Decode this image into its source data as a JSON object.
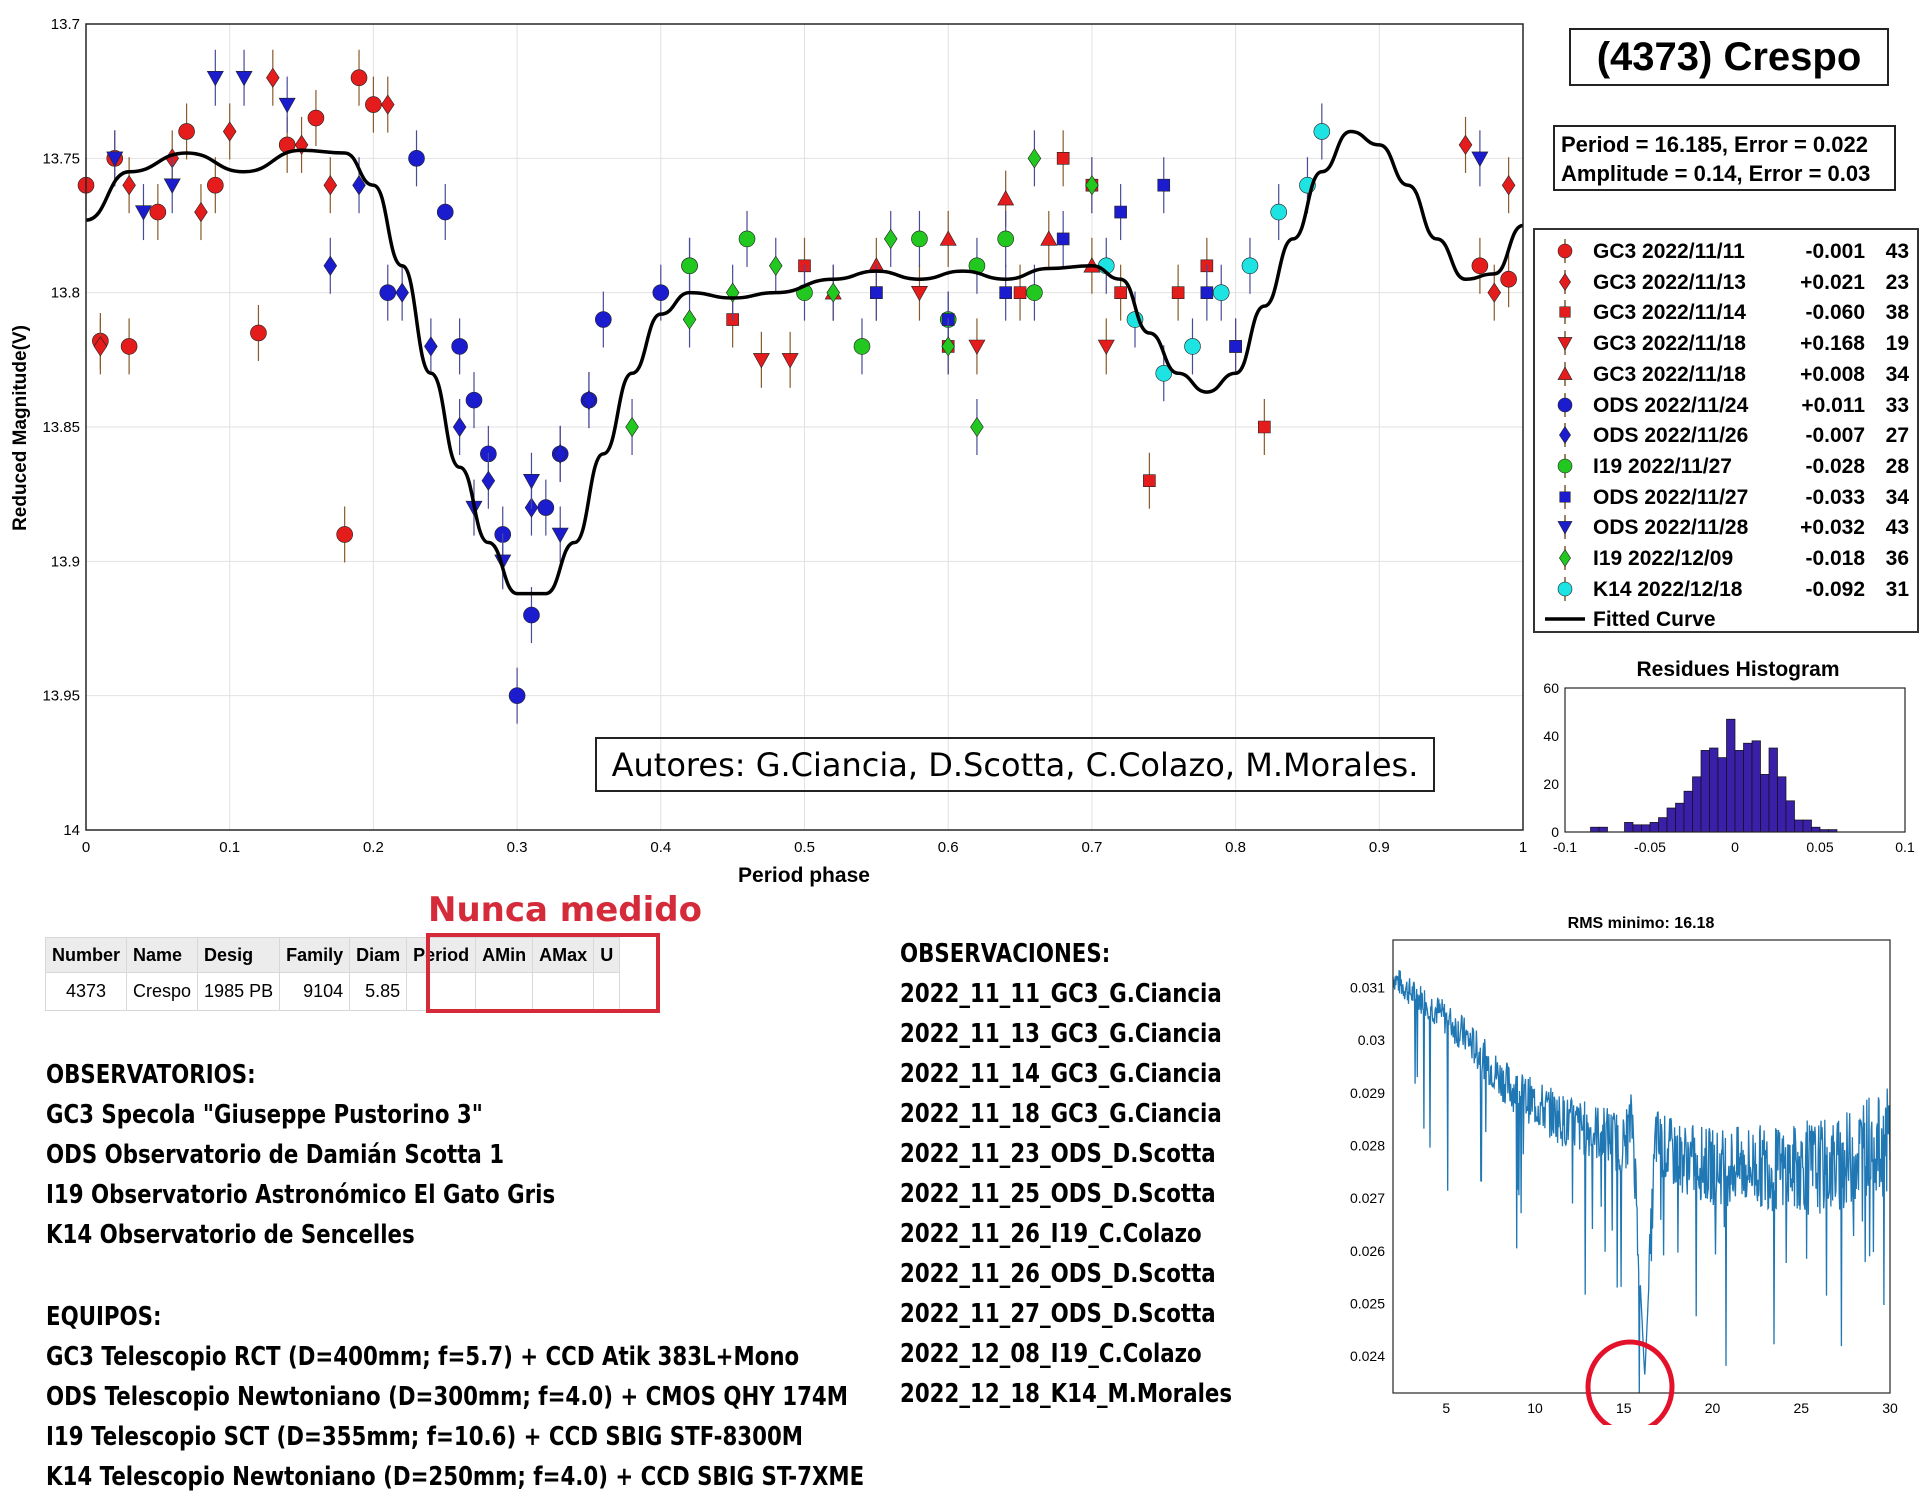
{
  "header": {
    "title": "(4373) Crespo",
    "period_line": "Period =  16.185, Error = 0.022",
    "amplitude_line": "Amplitude = 0.14, Error = 0.03",
    "authors": "Autores: G.Ciancia, D.Scotta, C.Colazo, M.Morales."
  },
  "chart_data": [
    {
      "type": "scatter",
      "xlabel": "Period phase",
      "ylabel": "Reduced Magnitude(V)",
      "xlim": [
        0,
        1
      ],
      "ylim": [
        14,
        13.7
      ],
      "y_reversed": true,
      "xticks": [
        0,
        0.1,
        0.2,
        0.3,
        0.4,
        0.5,
        0.6,
        0.7,
        0.8,
        0.9,
        1
      ],
      "xtick_labels": [
        "0",
        "0.1",
        "0.2",
        "0.3",
        "0.4",
        "0.5",
        "0.6",
        "0.7",
        "0.8",
        "0.9",
        "1"
      ],
      "yticks": [
        13.7,
        13.75,
        13.8,
        13.85,
        13.9,
        13.95,
        14
      ],
      "ytick_labels": [
        "13.7",
        "13.75",
        "13.8",
        "13.85",
        "13.9",
        "13.95",
        "14"
      ],
      "grid": true,
      "legend_position": "right",
      "series": [
        {
          "name": "GC3 2022/11/11",
          "offset": "-0.001",
          "count": "43",
          "color": "#e41c1c",
          "marker": "circle",
          "x": [
            0.0,
            0.01,
            0.02,
            0.03,
            0.05,
            0.07,
            0.09,
            0.12,
            0.14,
            0.16,
            0.18,
            0.19,
            0.2,
            0.97,
            0.99
          ],
          "y": [
            13.76,
            13.818,
            13.75,
            13.82,
            13.77,
            13.74,
            13.76,
            13.815,
            13.745,
            13.735,
            13.89,
            13.72,
            13.73,
            13.79,
            13.795
          ]
        },
        {
          "name": "GC3 2022/11/13",
          "offset": "+0.021",
          "count": "23",
          "color": "#e41c1c",
          "marker": "diamond",
          "x": [
            0.01,
            0.03,
            0.06,
            0.08,
            0.1,
            0.13,
            0.15,
            0.17,
            0.21,
            0.96,
            0.98,
            0.99
          ],
          "y": [
            13.82,
            13.76,
            13.75,
            13.77,
            13.74,
            13.72,
            13.745,
            13.76,
            13.73,
            13.745,
            13.8,
            13.76
          ]
        },
        {
          "name": "GC3 2022/11/14",
          "offset": "-0.060",
          "count": "38",
          "color": "#e41c1c",
          "marker": "square",
          "x": [
            0.45,
            0.5,
            0.55,
            0.6,
            0.65,
            0.68,
            0.7,
            0.72,
            0.74,
            0.76,
            0.78,
            0.8,
            0.82
          ],
          "y": [
            13.81,
            13.79,
            13.8,
            13.82,
            13.8,
            13.75,
            13.76,
            13.8,
            13.87,
            13.8,
            13.79,
            13.82,
            13.85
          ]
        },
        {
          "name": "GC3 2022/11/18",
          "offset": "+0.168",
          "count": "19",
          "color": "#e41c1c",
          "marker": "triangle-down",
          "x": [
            0.47,
            0.49,
            0.58,
            0.62,
            0.71
          ],
          "y": [
            13.825,
            13.825,
            13.8,
            13.82,
            13.82
          ]
        },
        {
          "name": "GC3 2022/11/18",
          "offset": "+0.008",
          "count": "34",
          "color": "#e41c1c",
          "marker": "triangle-up",
          "x": [
            0.52,
            0.55,
            0.6,
            0.64,
            0.67,
            0.7
          ],
          "y": [
            13.8,
            13.79,
            13.78,
            13.765,
            13.78,
            13.79
          ]
        },
        {
          "name": "ODS 2022/11/24",
          "offset": "+0.011",
          "count": "33",
          "color": "#1c1ccf",
          "marker": "circle",
          "x": [
            0.21,
            0.23,
            0.25,
            0.26,
            0.27,
            0.28,
            0.29,
            0.3,
            0.31,
            0.32,
            0.33,
            0.35,
            0.36,
            0.4,
            0.42
          ],
          "y": [
            13.8,
            13.75,
            13.77,
            13.82,
            13.84,
            13.86,
            13.89,
            13.95,
            13.92,
            13.88,
            13.86,
            13.84,
            13.81,
            13.8,
            13.79
          ]
        },
        {
          "name": "ODS 2022/11/26",
          "offset": "-0.007",
          "count": "27",
          "color": "#1c1ccf",
          "marker": "diamond",
          "x": [
            0.17,
            0.19,
            0.22,
            0.24,
            0.26,
            0.28,
            0.31,
            0.33,
            0.35
          ],
          "y": [
            13.79,
            13.76,
            13.8,
            13.82,
            13.85,
            13.87,
            13.88,
            13.86,
            13.84
          ]
        },
        {
          "name": "I19 2022/11/27",
          "offset": "-0.028",
          "count": "28",
          "color": "#22c71f",
          "marker": "circle",
          "x": [
            0.42,
            0.46,
            0.5,
            0.54,
            0.58,
            0.6,
            0.62,
            0.64,
            0.66
          ],
          "y": [
            13.79,
            13.78,
            13.8,
            13.82,
            13.78,
            13.81,
            13.79,
            13.78,
            13.8
          ]
        },
        {
          "name": "ODS 2022/11/27",
          "offset": "-0.033",
          "count": "34",
          "color": "#1c1ccf",
          "marker": "square",
          "x": [
            0.55,
            0.6,
            0.64,
            0.68,
            0.72,
            0.75,
            0.78,
            0.8
          ],
          "y": [
            13.8,
            13.81,
            13.8,
            13.78,
            13.77,
            13.76,
            13.8,
            13.82
          ]
        },
        {
          "name": "ODS 2022/11/28",
          "offset": "+0.032",
          "count": "43",
          "color": "#1c1ccf",
          "marker": "triangle-down",
          "x": [
            0.02,
            0.04,
            0.06,
            0.09,
            0.11,
            0.14,
            0.27,
            0.29,
            0.31,
            0.33,
            0.97
          ],
          "y": [
            13.75,
            13.77,
            13.76,
            13.72,
            13.72,
            13.73,
            13.88,
            13.9,
            13.87,
            13.89,
            13.75
          ]
        },
        {
          "name": "I19 2022/12/09",
          "offset": "-0.018",
          "count": "36",
          "color": "#22c71f",
          "marker": "diamond",
          "x": [
            0.38,
            0.42,
            0.45,
            0.48,
            0.52,
            0.56,
            0.6,
            0.62,
            0.66,
            0.7
          ],
          "y": [
            13.85,
            13.81,
            13.8,
            13.79,
            13.8,
            13.78,
            13.82,
            13.85,
            13.75,
            13.76
          ]
        },
        {
          "name": "K14 2022/12/18",
          "offset": "-0.092",
          "count": "31",
          "color": "#1ee3e3",
          "marker": "circle",
          "x": [
            0.71,
            0.73,
            0.75,
            0.77,
            0.79,
            0.81,
            0.83,
            0.85,
            0.86
          ],
          "y": [
            13.79,
            13.81,
            13.83,
            13.82,
            13.8,
            13.79,
            13.77,
            13.76,
            13.74
          ]
        }
      ],
      "fitted_curve": {
        "name": "Fitted Curve",
        "x": [
          0,
          0.03,
          0.07,
          0.11,
          0.15,
          0.18,
          0.2,
          0.22,
          0.24,
          0.26,
          0.28,
          0.3,
          0.32,
          0.34,
          0.36,
          0.38,
          0.4,
          0.42,
          0.45,
          0.48,
          0.52,
          0.55,
          0.58,
          0.61,
          0.64,
          0.67,
          0.7,
          0.72,
          0.74,
          0.76,
          0.78,
          0.8,
          0.82,
          0.84,
          0.86,
          0.88,
          0.9,
          0.92,
          0.94,
          0.96,
          0.98,
          1
        ],
        "y": [
          13.773,
          13.755,
          13.748,
          13.755,
          13.747,
          13.748,
          13.76,
          13.79,
          13.83,
          13.865,
          13.893,
          13.912,
          13.912,
          13.893,
          13.86,
          13.83,
          13.808,
          13.8,
          13.802,
          13.8,
          13.795,
          13.792,
          13.795,
          13.792,
          13.795,
          13.791,
          13.79,
          13.795,
          13.815,
          13.83,
          13.837,
          13.83,
          13.805,
          13.78,
          13.755,
          13.74,
          13.745,
          13.76,
          13.78,
          13.795,
          13.793,
          13.775
        ]
      }
    },
    {
      "type": "bar",
      "title": "Residues Histogram",
      "xlim": [
        -0.1,
        0.1
      ],
      "ylim": [
        0,
        60
      ],
      "xtick_labels": [
        "-0.1",
        "-0.05",
        "0",
        "0.05",
        "0.1"
      ],
      "ytick_labels": [
        "0",
        "20",
        "40",
        "60"
      ],
      "bin_width": 0.005,
      "bin_centers": [
        -0.0825,
        -0.0775,
        -0.0725,
        -0.0675,
        -0.0625,
        -0.0575,
        -0.0525,
        -0.0475,
        -0.0425,
        -0.0375,
        -0.0325,
        -0.0275,
        -0.0225,
        -0.0175,
        -0.0125,
        -0.0075,
        -0.0025,
        0.0025,
        0.0075,
        0.0125,
        0.0175,
        0.0225,
        0.0275,
        0.0325,
        0.0375,
        0.0425,
        0.0475,
        0.0525,
        0.0575
      ],
      "values": [
        2,
        2,
        0,
        0,
        4,
        3,
        3,
        4,
        6,
        10,
        12,
        17,
        23,
        34,
        35,
        31,
        47,
        34,
        37,
        38,
        24,
        35,
        23,
        13,
        5,
        5,
        2,
        1,
        1
      ]
    },
    {
      "type": "line",
      "title": "RMS minimo: 16.18",
      "xlim": [
        2,
        30
      ],
      "ylim": [
        0.0233,
        0.0319
      ],
      "xtick_labels": [
        "5",
        "10",
        "15",
        "20",
        "25",
        "30"
      ],
      "ytick_labels": [
        "0.024",
        "0.025",
        "0.026",
        "0.027",
        "0.028",
        "0.029",
        "0.03",
        "0.031"
      ],
      "color": "#1f77b4",
      "x": [
        2,
        3,
        4,
        5,
        6,
        7,
        8,
        9,
        10,
        11,
        12,
        13,
        14,
        15,
        15.5,
        16.18,
        16.8,
        17,
        18,
        19,
        20,
        21,
        22,
        23,
        24,
        25,
        26,
        27,
        28,
        29,
        29.5,
        30
      ],
      "y": [
        0.0312,
        0.0309,
        0.0307,
        0.0304,
        0.0301,
        0.0297,
        0.0293,
        0.029,
        0.0288,
        0.0286,
        0.0284,
        0.0283,
        0.0282,
        0.028,
        0.0285,
        0.0236,
        0.0282,
        0.028,
        0.0278,
        0.0277,
        0.0276,
        0.0276,
        0.0276,
        0.0276,
        0.0275,
        0.0276,
        0.0276,
        0.0276,
        0.0278,
        0.0281,
        0.0279,
        0.0282
      ],
      "marker_circle_label": "RMS min circle"
    }
  ],
  "table": {
    "columns": [
      "Number",
      "Name",
      "Desig",
      "Family",
      "Diam",
      "Period",
      "AMin",
      "AMax",
      "U"
    ],
    "row": [
      "4373",
      "Crespo",
      "1985 PB",
      "9104",
      "5.85",
      "",
      "",
      "",
      ""
    ],
    "note": "Nunca medido"
  },
  "observatorios": {
    "heading": "OBSERVATORIOS:",
    "lines": [
      "GC3 Specola \"Giuseppe Pustorino 3\"",
      "ODS Observatorio de Damián Scotta 1",
      "I19 Observatorio Astronómico El Gato Gris",
      "K14 Observatorio de Sencelles"
    ]
  },
  "equipos": {
    "heading": "EQUIPOS:",
    "lines": [
      "GC3 Telescopio RCT (D=400mm; f=5.7) + CCD Atik 383L+Mono",
      "ODS Telescopio Newtoniano (D=300mm; f=4.0) + CMOS QHY 174M",
      "I19 Telescopio SCT (D=355mm; f=10.6) + CCD SBIG STF-8300M",
      "K14 Telescopio Newtoniano (D=250mm; f=4.0) + CCD SBIG ST-7XME"
    ]
  },
  "observaciones": {
    "heading": "OBSERVACIONES:",
    "lines": [
      "2022_11_11_GC3_G.Ciancia",
      "2022_11_13_GC3_G.Ciancia",
      "2022_11_14_GC3_G.Ciancia",
      "2022_11_18_GC3_G.Ciancia",
      "2022_11_23_ODS_D.Scotta",
      "2022_11_25_ODS_D.Scotta",
      "2022_11_26_I19_C.Colazo",
      "2022_11_26_ODS_D.Scotta",
      "2022_11_27_ODS_D.Scotta",
      "2022_12_08_I19_C.Colazo",
      "2022_12_18_K14_M.Morales"
    ]
  }
}
